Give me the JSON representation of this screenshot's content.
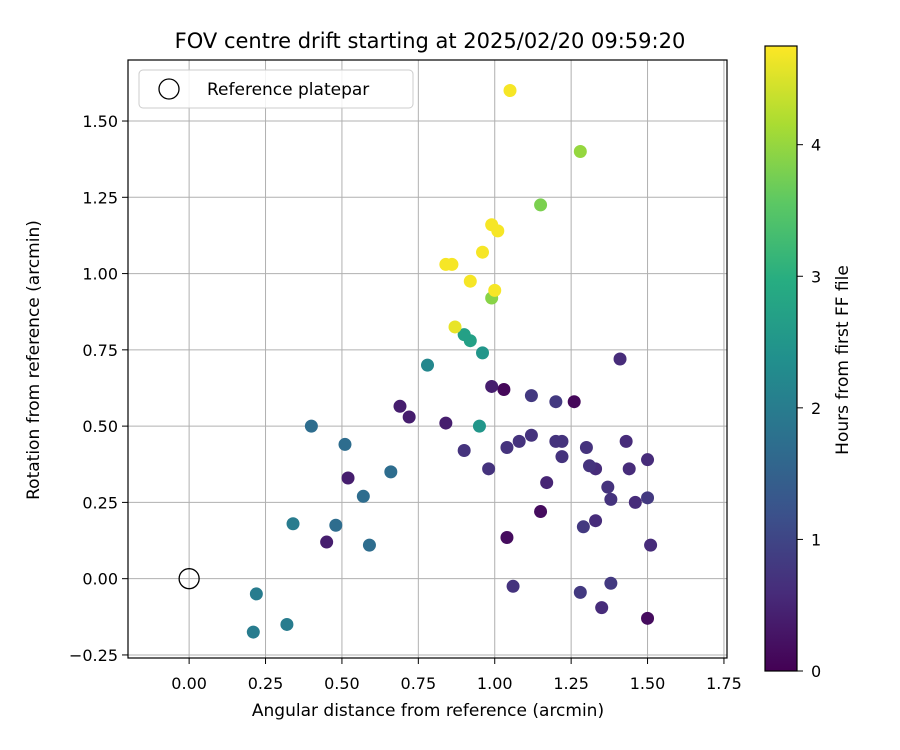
{
  "chart_data": {
    "type": "scatter",
    "title": "FOV centre drift starting at 2025/02/20 09:59:20",
    "xlabel": "Angular distance from reference (arcmin)",
    "ylabel": "Rotation from reference (arcmin)",
    "xlim": [
      -0.2,
      1.76
    ],
    "ylim": [
      -0.26,
      1.7
    ],
    "xticks": [
      0.0,
      0.25,
      0.5,
      0.75,
      1.0,
      1.25,
      1.5,
      1.75
    ],
    "xtick_labels": [
      "0.00",
      "0.25",
      "0.50",
      "0.75",
      "1.00",
      "1.25",
      "1.50",
      "1.75"
    ],
    "yticks": [
      -0.25,
      0.0,
      0.25,
      0.5,
      0.75,
      1.0,
      1.25,
      1.5
    ],
    "ytick_labels": [
      "−0.25",
      "0.00",
      "0.25",
      "0.50",
      "0.75",
      "1.00",
      "1.25",
      "1.50"
    ],
    "grid": true,
    "legend": {
      "placement": "top-left",
      "entries": [
        "Reference platepar"
      ]
    },
    "reference_point": {
      "x": 0.0,
      "y": 0.0
    },
    "colorbar": {
      "label": "Hours from first FF file",
      "range": [
        0,
        4.75
      ],
      "ticks": [
        0,
        1,
        2,
        3,
        4
      ],
      "tick_labels": [
        "0",
        "1",
        "2",
        "3",
        "4"
      ],
      "colormap": "viridis"
    },
    "points": [
      {
        "x": 1.03,
        "y": 0.62,
        "c": 0.1
      },
      {
        "x": 1.26,
        "y": 0.58,
        "c": 0.1
      },
      {
        "x": 1.15,
        "y": 0.22,
        "c": 0.15
      },
      {
        "x": 1.04,
        "y": 0.135,
        "c": 0.15
      },
      {
        "x": 1.5,
        "y": -0.13,
        "c": 0.15
      },
      {
        "x": 0.99,
        "y": 0.63,
        "c": 0.4
      },
      {
        "x": 0.69,
        "y": 0.565,
        "c": 0.4
      },
      {
        "x": 0.72,
        "y": 0.53,
        "c": 0.4
      },
      {
        "x": 0.84,
        "y": 0.51,
        "c": 0.4
      },
      {
        "x": 0.52,
        "y": 0.33,
        "c": 0.4
      },
      {
        "x": 0.45,
        "y": 0.12,
        "c": 0.4
      },
      {
        "x": 1.17,
        "y": 0.315,
        "c": 0.5
      },
      {
        "x": 1.35,
        "y": -0.095,
        "c": 0.6
      },
      {
        "x": 1.41,
        "y": 0.72,
        "c": 0.6
      },
      {
        "x": 1.44,
        "y": 0.36,
        "c": 0.6
      },
      {
        "x": 1.43,
        "y": 0.45,
        "c": 0.6
      },
      {
        "x": 1.33,
        "y": 0.36,
        "c": 0.6
      },
      {
        "x": 1.33,
        "y": 0.19,
        "c": 0.6
      },
      {
        "x": 1.5,
        "y": 0.39,
        "c": 0.6
      },
      {
        "x": 1.51,
        "y": 0.11,
        "c": 0.6
      },
      {
        "x": 1.46,
        "y": 0.25,
        "c": 0.6
      },
      {
        "x": 1.3,
        "y": 0.43,
        "c": 0.7
      },
      {
        "x": 1.37,
        "y": 0.3,
        "c": 0.7
      },
      {
        "x": 1.38,
        "y": 0.26,
        "c": 0.7
      },
      {
        "x": 1.31,
        "y": 0.37,
        "c": 0.7
      },
      {
        "x": 1.22,
        "y": 0.45,
        "c": 0.7
      },
      {
        "x": 1.22,
        "y": 0.4,
        "c": 0.7
      },
      {
        "x": 1.2,
        "y": 0.45,
        "c": 0.7
      },
      {
        "x": 1.12,
        "y": 0.47,
        "c": 0.7
      },
      {
        "x": 1.08,
        "y": 0.45,
        "c": 0.7
      },
      {
        "x": 1.04,
        "y": 0.43,
        "c": 0.7
      },
      {
        "x": 0.9,
        "y": 0.42,
        "c": 0.7
      },
      {
        "x": 0.98,
        "y": 0.36,
        "c": 0.7
      },
      {
        "x": 1.06,
        "y": -0.025,
        "c": 0.7
      },
      {
        "x": 1.29,
        "y": 0.17,
        "c": 0.8
      },
      {
        "x": 1.5,
        "y": 0.265,
        "c": 0.8
      },
      {
        "x": 1.38,
        "y": -0.015,
        "c": 0.8
      },
      {
        "x": 1.28,
        "y": -0.045,
        "c": 0.8
      },
      {
        "x": 1.12,
        "y": 0.6,
        "c": 0.8
      },
      {
        "x": 1.2,
        "y": 0.58,
        "c": 0.8
      },
      {
        "x": 0.4,
        "y": 0.5,
        "c": 1.7
      },
      {
        "x": 0.51,
        "y": 0.44,
        "c": 1.7
      },
      {
        "x": 0.66,
        "y": 0.35,
        "c": 1.7
      },
      {
        "x": 0.57,
        "y": 0.27,
        "c": 1.7
      },
      {
        "x": 0.59,
        "y": 0.11,
        "c": 1.7
      },
      {
        "x": 0.48,
        "y": 0.175,
        "c": 1.7
      },
      {
        "x": 0.34,
        "y": 0.18,
        "c": 2.0
      },
      {
        "x": 0.22,
        "y": -0.05,
        "c": 2.0
      },
      {
        "x": 0.21,
        "y": -0.175,
        "c": 2.0
      },
      {
        "x": 0.32,
        "y": -0.15,
        "c": 2.0
      },
      {
        "x": 0.78,
        "y": 0.7,
        "c": 2.2
      },
      {
        "x": 0.96,
        "y": 0.74,
        "c": 2.5
      },
      {
        "x": 0.95,
        "y": 0.5,
        "c": 2.5
      },
      {
        "x": 0.92,
        "y": 0.78,
        "c": 2.7
      },
      {
        "x": 0.9,
        "y": 0.8,
        "c": 2.7
      },
      {
        "x": 0.99,
        "y": 0.92,
        "c": 3.9
      },
      {
        "x": 1.15,
        "y": 1.225,
        "c": 3.8
      },
      {
        "x": 1.28,
        "y": 1.4,
        "c": 4.0
      },
      {
        "x": 1.05,
        "y": 1.6,
        "c": 4.7
      },
      {
        "x": 0.99,
        "y": 1.16,
        "c": 4.7
      },
      {
        "x": 1.01,
        "y": 1.14,
        "c": 4.7
      },
      {
        "x": 0.96,
        "y": 1.07,
        "c": 4.7
      },
      {
        "x": 0.84,
        "y": 1.03,
        "c": 4.7
      },
      {
        "x": 0.86,
        "y": 1.03,
        "c": 4.7
      },
      {
        "x": 0.92,
        "y": 0.975,
        "c": 4.7
      },
      {
        "x": 1.0,
        "y": 0.945,
        "c": 4.7
      },
      {
        "x": 0.87,
        "y": 0.825,
        "c": 4.6
      }
    ]
  }
}
